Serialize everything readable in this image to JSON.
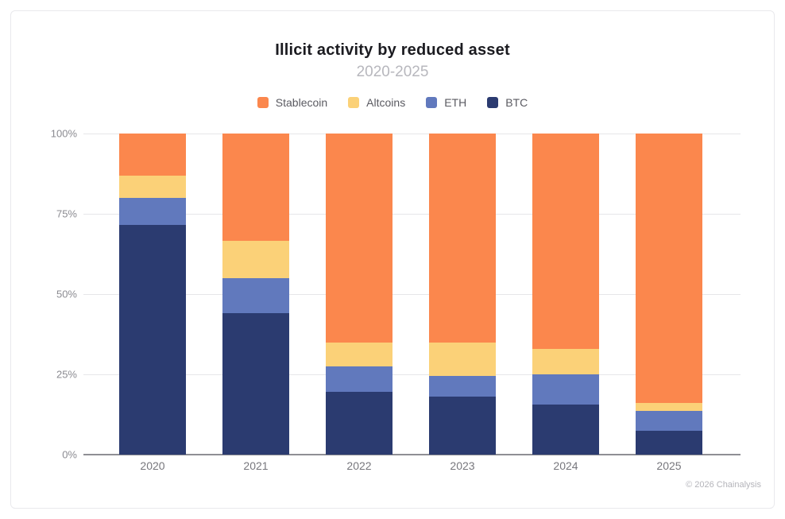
{
  "header": {
    "title": "Illicit activity by reduced asset",
    "subtitle": "2020-2025"
  },
  "legend": {
    "items": [
      {
        "label": "Stablecoin",
        "color": "#FB874D"
      },
      {
        "label": "Altcoins",
        "color": "#FBD178"
      },
      {
        "label": "ETH",
        "color": "#6179BD"
      },
      {
        "label": "BTC",
        "color": "#2B3B70"
      }
    ]
  },
  "footer": {
    "credit": "© 2026 Chainalysis"
  },
  "chart_data": {
    "type": "bar",
    "stacked": true,
    "unit": "percent",
    "title": "Illicit activity by reduced asset",
    "subtitle": "2020-2025",
    "categories": [
      "2020",
      "2021",
      "2022",
      "2023",
      "2024",
      "2025"
    ],
    "series": [
      {
        "name": "BTC",
        "color": "#2B3B70",
        "values": [
          71.5,
          44,
          19.5,
          18,
          15.5,
          7.5
        ]
      },
      {
        "name": "ETH",
        "color": "#6179BD",
        "values": [
          8.5,
          11,
          8,
          6.5,
          9.5,
          6
        ]
      },
      {
        "name": "Altcoins",
        "color": "#FBD178",
        "values": [
          7,
          11.5,
          7.5,
          10.5,
          8,
          2.5
        ]
      },
      {
        "name": "Stablecoin",
        "color": "#FB874D",
        "values": [
          13,
          33.5,
          65,
          65,
          67,
          84
        ]
      }
    ],
    "yticks": [
      "0%",
      "25%",
      "50%",
      "75%",
      "100%"
    ],
    "ylim": [
      0,
      100
    ],
    "grid": true,
    "legend_position": "top"
  }
}
